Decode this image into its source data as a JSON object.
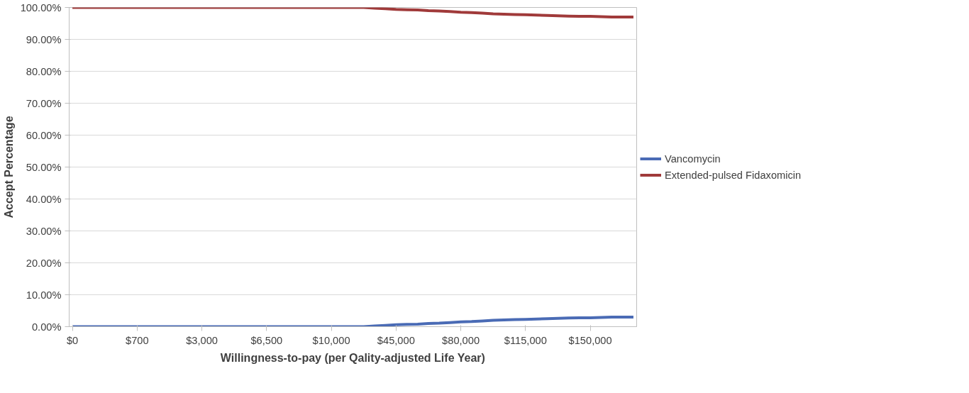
{
  "chart_data": {
    "type": "line",
    "xlabel": "Willingness-to-pay (per Qality-adjusted Life Year)",
    "ylabel": "Accept Percentage",
    "categories": [
      "$0",
      null,
      null,
      null,
      null,
      null,
      "$700",
      null,
      null,
      null,
      null,
      null,
      "$3,000",
      null,
      null,
      null,
      null,
      null,
      "$6,500",
      null,
      null,
      null,
      null,
      null,
      "$10,000",
      null,
      null,
      null,
      null,
      null,
      "$45,000",
      null,
      null,
      null,
      null,
      null,
      "$80,000",
      null,
      null,
      null,
      null,
      null,
      "$115,000",
      null,
      null,
      null,
      null,
      null,
      "$150,000",
      null,
      null,
      null,
      null
    ],
    "series": [
      {
        "name": "Vancomycin",
        "color": "#4a6bb5",
        "values": [
          0,
          0,
          0,
          0,
          0,
          0,
          0,
          0,
          0,
          0,
          0,
          0,
          0,
          0,
          0,
          0,
          0,
          0,
          0,
          0,
          0,
          0,
          0,
          0,
          0,
          0,
          0,
          0,
          0.2,
          0.4,
          0.6,
          0.7,
          0.8,
          1.0,
          1.1,
          1.3,
          1.5,
          1.6,
          1.8,
          2.0,
          2.1,
          2.2,
          2.3,
          2.4,
          2.5,
          2.6,
          2.7,
          2.8,
          2.8,
          2.9,
          3.0,
          3.0,
          3.0
        ]
      },
      {
        "name": "Extended-pulsed Fidaxomicin",
        "color": "#a03a3a",
        "values": [
          100,
          100,
          100,
          100,
          100,
          100,
          100,
          100,
          100,
          100,
          100,
          100,
          100,
          100,
          100,
          100,
          100,
          100,
          100,
          100,
          100,
          100,
          100,
          100,
          100,
          100,
          100,
          100,
          99.8,
          99.6,
          99.4,
          99.3,
          99.2,
          99.0,
          98.9,
          98.7,
          98.5,
          98.4,
          98.2,
          98.0,
          97.9,
          97.8,
          97.7,
          97.6,
          97.5,
          97.4,
          97.3,
          97.2,
          97.2,
          97.1,
          97.0,
          97.0,
          97.0
        ]
      }
    ],
    "ylim": [
      0,
      100
    ],
    "yticks": [
      {
        "value": 0,
        "label": "0.00%"
      },
      {
        "value": 10,
        "label": "10.00%"
      },
      {
        "value": 20,
        "label": "20.00%"
      },
      {
        "value": 30,
        "label": "30.00%"
      },
      {
        "value": 40,
        "label": "40.00%"
      },
      {
        "value": 50,
        "label": "50.00%"
      },
      {
        "value": 60,
        "label": "60.00%"
      },
      {
        "value": 70,
        "label": "70.00%"
      },
      {
        "value": 80,
        "label": "80.00%"
      },
      {
        "value": 90,
        "label": "90.00%"
      },
      {
        "value": 100,
        "label": "100.00%"
      }
    ],
    "grid": "y",
    "legend": "right",
    "marker": "none",
    "line_style": "solid"
  }
}
